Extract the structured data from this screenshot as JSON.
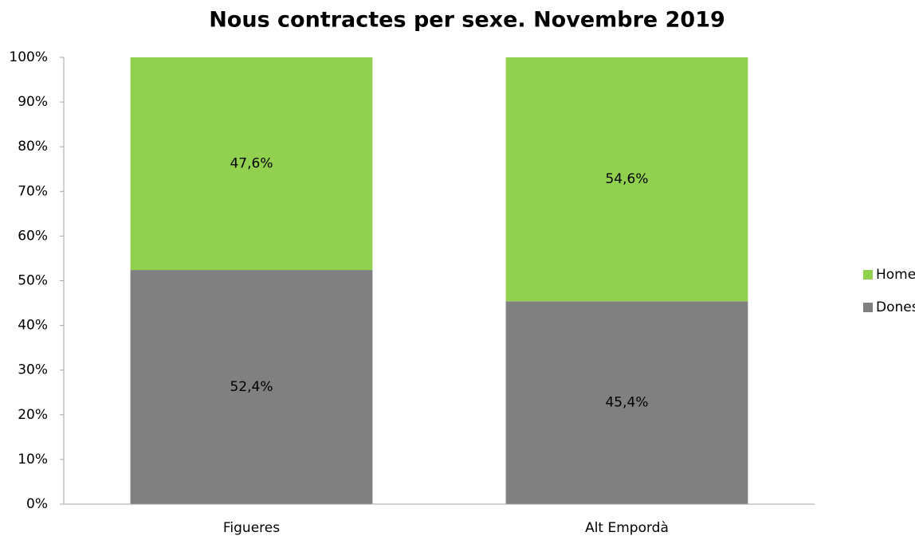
{
  "chart_data": {
    "type": "stacked-bar",
    "title": "Nous contractes per sexe. Novembre 2019",
    "categories": [
      "Figueres",
      "Alt Empordà"
    ],
    "series": [
      {
        "name": "Dones",
        "color": "#808080",
        "values": [
          52.4,
          45.4
        ],
        "value_labels": [
          "52,4%",
          "45,4%"
        ]
      },
      {
        "name": "Homes",
        "color": "#92d050",
        "values": [
          47.6,
          54.6
        ],
        "value_labels": [
          "47,6%",
          "54,6%"
        ]
      }
    ],
    "ylim": [
      0,
      100
    ],
    "yticks": [
      {
        "value": 0,
        "label": "0%"
      },
      {
        "value": 10,
        "label": "10%"
      },
      {
        "value": 20,
        "label": "20%"
      },
      {
        "value": 30,
        "label": "30%"
      },
      {
        "value": 40,
        "label": "40%"
      },
      {
        "value": 50,
        "label": "50%"
      },
      {
        "value": 60,
        "label": "60%"
      },
      {
        "value": 70,
        "label": "70%"
      },
      {
        "value": 80,
        "label": "80%"
      },
      {
        "value": 90,
        "label": "90%"
      },
      {
        "value": 100,
        "label": "100%"
      }
    ],
    "grid": false,
    "legend": "right"
  }
}
